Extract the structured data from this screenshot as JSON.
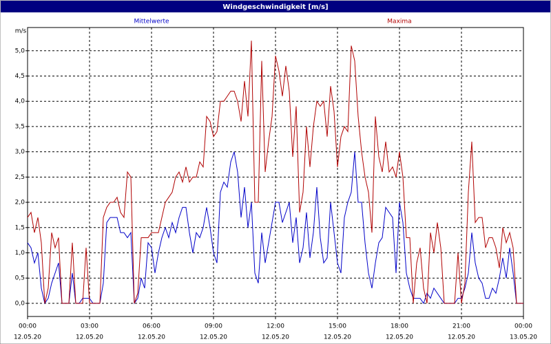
{
  "chart_data": {
    "type": "line",
    "title": "Windgeschwindigkeit [m/s]",
    "ylabel": "m/s",
    "x": [
      0,
      10,
      20,
      30,
      40,
      50,
      60,
      70,
      80,
      90,
      100,
      110,
      120,
      130,
      140,
      150,
      160,
      170,
      180,
      190,
      200,
      210,
      220,
      230,
      240,
      250,
      260,
      270,
      280,
      290,
      300,
      310,
      320,
      330,
      340,
      350,
      360,
      370,
      380,
      390,
      400,
      410,
      420,
      430,
      440,
      450,
      460,
      470,
      480,
      490,
      500,
      510,
      520,
      530,
      540,
      550,
      560,
      570,
      580,
      590,
      600,
      610,
      620,
      630,
      640,
      650,
      660,
      670,
      680,
      690,
      700,
      710,
      720,
      730,
      740,
      750,
      760,
      770,
      780,
      790,
      800,
      810,
      820,
      830,
      840,
      850,
      860,
      870,
      880,
      890,
      900,
      910,
      920,
      930,
      940,
      950,
      960,
      970,
      980,
      990,
      1000,
      1010,
      1020,
      1030,
      1040,
      1050,
      1060,
      1070,
      1080,
      1090,
      1100,
      1110,
      1120,
      1130,
      1140,
      1150,
      1160,
      1170,
      1180,
      1190,
      1200,
      1210,
      1220,
      1230,
      1240,
      1250,
      1260,
      1270,
      1280,
      1290,
      1300,
      1310,
      1320,
      1330,
      1340,
      1350,
      1360,
      1370,
      1380,
      1390,
      1400,
      1410,
      1420,
      1430,
      1440
    ],
    "series": [
      {
        "name": "Mittelwerte",
        "color": "#0000c8",
        "values": [
          1.2,
          1.1,
          0.8,
          1.0,
          0.3,
          0,
          0.1,
          0.4,
          0.6,
          0.8,
          0,
          0,
          0,
          0.6,
          0,
          0,
          0.1,
          0.1,
          0.1,
          0,
          0,
          0,
          0.4,
          1.6,
          1.7,
          1.7,
          1.7,
          1.4,
          1.4,
          1.3,
          1.4,
          0,
          0.1,
          0.5,
          0.3,
          1.2,
          1.1,
          0.6,
          1.0,
          1.3,
          1.5,
          1.3,
          1.6,
          1.4,
          1.7,
          1.9,
          1.9,
          1.4,
          1.0,
          1.4,
          1.3,
          1.5,
          1.9,
          1.5,
          1.0,
          0.8,
          2.2,
          2.4,
          2.3,
          2.8,
          3.0,
          2.6,
          1.7,
          2.3,
          1.5,
          2.0,
          0.6,
          0.4,
          1.4,
          0.8,
          1.2,
          1.6,
          2.0,
          2.0,
          1.6,
          1.8,
          2.0,
          1.2,
          1.7,
          0.8,
          1.1,
          1.8,
          0.9,
          1.4,
          2.3,
          1.3,
          0.8,
          0.9,
          2.0,
          1.4,
          0.8,
          0.6,
          1.7,
          2.0,
          2.2,
          3.0,
          2.0,
          2.0,
          1.2,
          0.6,
          0.3,
          0.8,
          1.2,
          1.3,
          1.9,
          1.8,
          1.7,
          0.6,
          2.0,
          1.6,
          0.6,
          0.3,
          0.1,
          0.1,
          0.1,
          0,
          0.2,
          0.1,
          0.3,
          0.2,
          0.1,
          0,
          0,
          0,
          0,
          0.1,
          0.1,
          0.3,
          0.6,
          1.4,
          0.8,
          0.5,
          0.4,
          0.1,
          0.1,
          0.3,
          0.2,
          0.5,
          0.9,
          0.5,
          1.1,
          0.6,
          0,
          0,
          0
        ]
      },
      {
        "name": "Maxima",
        "color": "#b00000",
        "values": [
          1.7,
          1.8,
          1.4,
          1.7,
          1.2,
          0,
          0.3,
          1.4,
          1.1,
          1.3,
          0,
          0,
          0,
          1.2,
          0,
          0,
          0,
          1.1,
          0,
          0,
          0,
          0,
          1.7,
          1.9,
          2.0,
          2.0,
          2.1,
          1.8,
          1.7,
          2.6,
          2.5,
          0,
          0.2,
          1.3,
          1.3,
          1.3,
          1.4,
          1.4,
          1.4,
          1.7,
          2.0,
          2.1,
          2.2,
          2.5,
          2.6,
          2.4,
          2.7,
          2.4,
          2.5,
          2.5,
          2.8,
          2.7,
          3.7,
          3.6,
          3.3,
          3.4,
          4.0,
          4.0,
          4.1,
          4.2,
          4.2,
          4.0,
          3.6,
          4.4,
          3.7,
          5.2,
          2.0,
          2.0,
          4.8,
          2.6,
          3.2,
          3.7,
          4.9,
          4.6,
          4.1,
          4.7,
          4.2,
          2.9,
          3.9,
          1.8,
          2.2,
          3.5,
          2.7,
          3.5,
          4.0,
          3.9,
          4.0,
          3.3,
          4.3,
          3.8,
          2.7,
          3.3,
          3.5,
          3.4,
          5.1,
          4.8,
          3.7,
          3.0,
          2.5,
          2.2,
          1.4,
          3.7,
          2.9,
          2.6,
          3.2,
          2.6,
          2.7,
          2.5,
          3.0,
          2.5,
          1.3,
          1.3,
          0,
          0.8,
          1.1,
          0.3,
          0,
          1.4,
          1.0,
          1.6,
          1.1,
          0,
          0,
          0,
          0,
          1.0,
          0,
          0.4,
          2.2,
          3.2,
          1.6,
          1.7,
          1.7,
          1.1,
          1.3,
          1.3,
          1.1,
          0.7,
          1.5,
          1.2,
          1.4,
          1.1,
          0,
          0,
          0
        ]
      }
    ],
    "xlim": [
      0,
      1440
    ],
    "xticks": [
      {
        "value": 0,
        "label": "00:00"
      },
      {
        "value": 180,
        "label": "03:00"
      },
      {
        "value": 360,
        "label": "06:00"
      },
      {
        "value": 540,
        "label": "09:00"
      },
      {
        "value": 720,
        "label": "12:00"
      },
      {
        "value": 900,
        "label": "15:00"
      },
      {
        "value": 1080,
        "label": "18:00"
      },
      {
        "value": 1260,
        "label": "21:00"
      },
      {
        "value": 1440,
        "label": "00:00"
      }
    ],
    "xtick_dates": [
      "12.05.20",
      "12.05.20",
      "12.05.20",
      "12.05.20",
      "12.05.20",
      "12.05.20",
      "12.05.20",
      "12.05.20",
      "13.05.20"
    ],
    "ylim": [
      -0.26,
      5.46
    ],
    "yticks": [
      {
        "value": 0,
        "label": "0,0"
      },
      {
        "value": 0.5,
        "label": "0,5"
      },
      {
        "value": 1,
        "label": "1,0"
      },
      {
        "value": 1.5,
        "label": "1,5"
      },
      {
        "value": 2,
        "label": "2,0"
      },
      {
        "value": 2.5,
        "label": "2,5"
      },
      {
        "value": 3,
        "label": "3,0"
      },
      {
        "value": 3.5,
        "label": "3,5"
      },
      {
        "value": 4,
        "label": "4,0"
      },
      {
        "value": 4.5,
        "label": "4,5"
      },
      {
        "value": 5,
        "label": "5,0"
      }
    ],
    "grid": true
  }
}
